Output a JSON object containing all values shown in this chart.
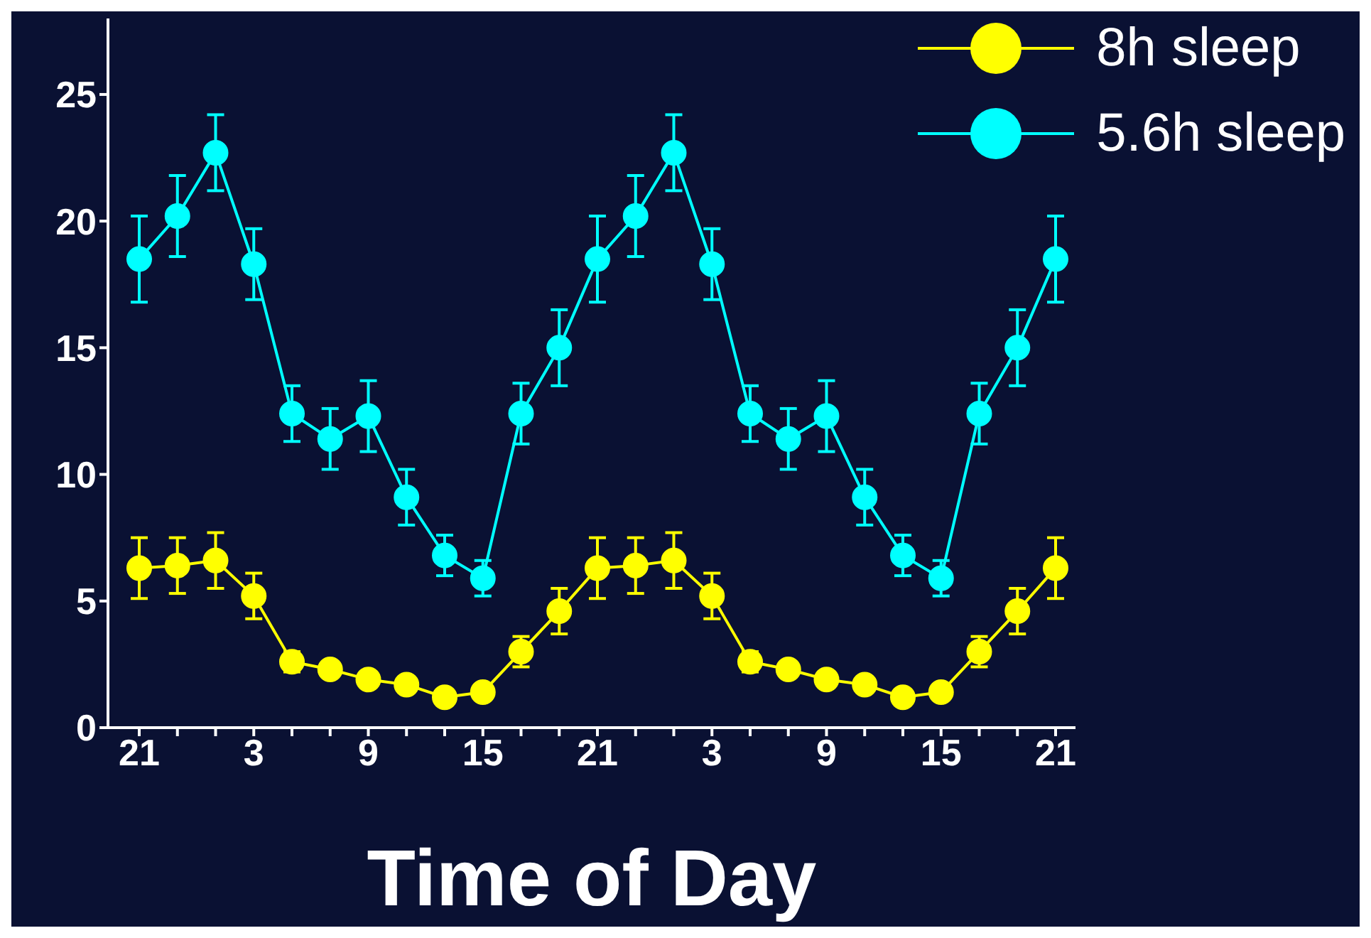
{
  "chart_data": {
    "type": "line",
    "xlabel": "Time of Day",
    "categories": [
      "21",
      null,
      null,
      "3",
      null,
      null,
      "9",
      null,
      null,
      "15",
      null,
      null,
      "21",
      null,
      null,
      "3",
      null,
      null,
      "9",
      null,
      null,
      "15",
      null,
      null,
      "21"
    ],
    "ylim": [
      0,
      28
    ],
    "yticks": [
      0,
      5,
      10,
      15,
      20,
      25
    ],
    "series": [
      {
        "name": "8h sleep",
        "color": "#ffff00",
        "values": [
          6.3,
          6.4,
          6.6,
          5.2,
          2.6,
          2.3,
          1.9,
          1.7,
          1.2,
          1.4,
          3.0,
          4.6,
          6.3,
          6.4,
          6.6,
          5.2,
          2.6,
          2.3,
          1.9,
          1.7,
          1.2,
          1.4,
          3.0,
          4.6,
          6.3
        ],
        "errors": [
          1.2,
          1.1,
          1.1,
          0.9,
          0.4,
          0.3,
          0.3,
          0.3,
          0.2,
          0.3,
          0.6,
          0.9,
          1.2,
          1.1,
          1.1,
          0.9,
          0.4,
          0.3,
          0.3,
          0.3,
          0.2,
          0.3,
          0.6,
          0.9,
          1.2
        ]
      },
      {
        "name": "5.6h sleep",
        "color": "#00ffff",
        "values": [
          18.5,
          20.2,
          22.7,
          18.3,
          12.4,
          11.4,
          12.3,
          9.1,
          6.8,
          5.9,
          12.4,
          15.0,
          18.5,
          20.2,
          22.7,
          18.3,
          12.4,
          11.4,
          12.3,
          9.1,
          6.8,
          5.9,
          12.4,
          15.0,
          18.5
        ],
        "errors": [
          1.7,
          1.6,
          1.5,
          1.4,
          1.1,
          1.2,
          1.4,
          1.1,
          0.8,
          0.7,
          1.2,
          1.5,
          1.7,
          1.6,
          1.5,
          1.4,
          1.1,
          1.2,
          1.4,
          1.1,
          0.8,
          0.7,
          1.2,
          1.5,
          1.7
        ]
      }
    ],
    "marker": "circle",
    "legend": "top right",
    "grid": false
  }
}
